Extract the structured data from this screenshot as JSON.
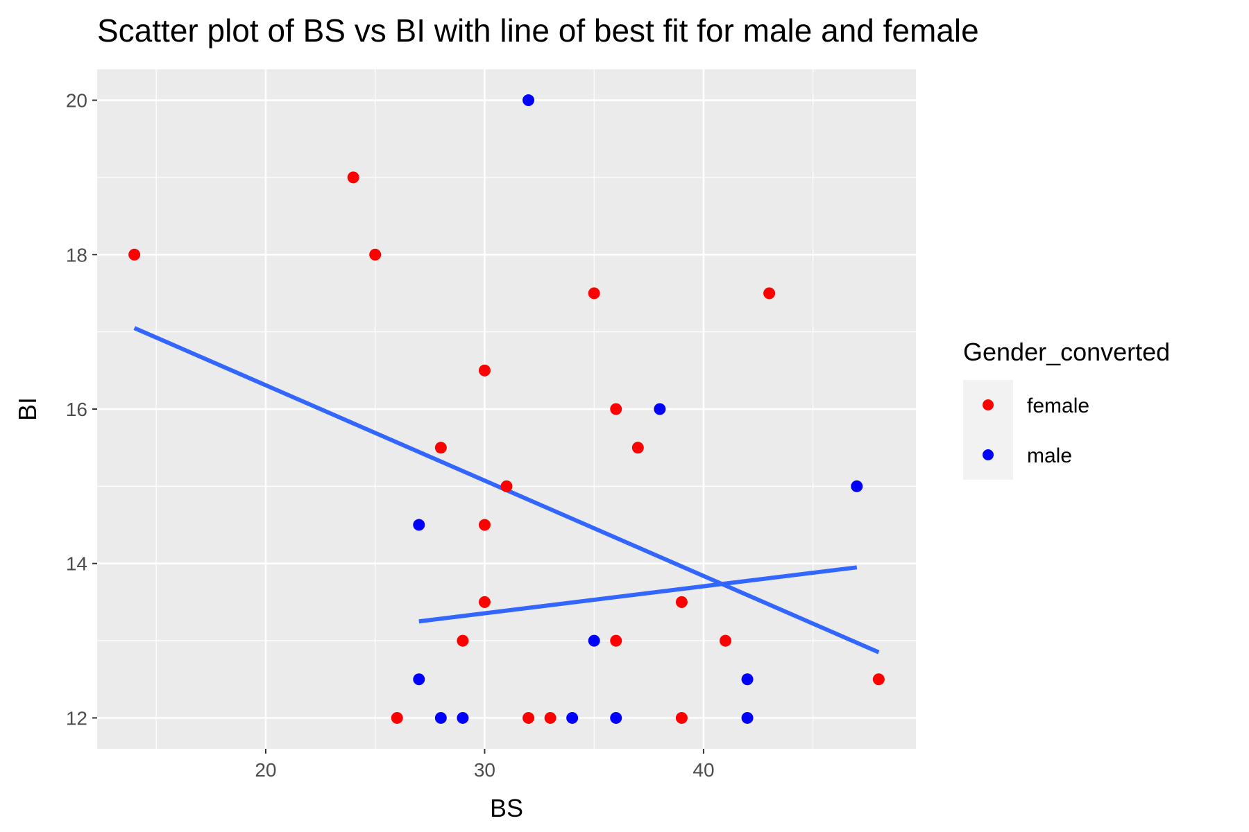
{
  "chart_data": {
    "type": "scatter",
    "title": "Scatter plot of BS vs BI with line of best fit for male and female",
    "xlabel": "BS",
    "ylabel": "BI",
    "xlim": [
      12.3,
      49.7
    ],
    "ylim": [
      11.6,
      20.4
    ],
    "x_ticks": [
      20,
      30,
      40
    ],
    "y_ticks": [
      12,
      14,
      16,
      18,
      20
    ],
    "x_minor": [
      15,
      25,
      35,
      45
    ],
    "y_minor": [
      13,
      15,
      17,
      19
    ],
    "grid": true,
    "legend": {
      "title": "Gender_converted",
      "position": "right",
      "entries": [
        "female",
        "male"
      ]
    },
    "series": [
      {
        "name": "female",
        "color": "#ff0000",
        "points": [
          [
            14,
            18
          ],
          [
            24,
            19
          ],
          [
            25,
            18
          ],
          [
            26,
            12
          ],
          [
            28,
            15.5
          ],
          [
            29,
            13
          ],
          [
            30,
            16.5
          ],
          [
            30,
            14.5
          ],
          [
            30,
            13.5
          ],
          [
            31,
            15
          ],
          [
            32,
            12
          ],
          [
            33,
            12
          ],
          [
            35,
            17.5
          ],
          [
            36,
            16
          ],
          [
            36,
            13
          ],
          [
            37,
            15.5
          ],
          [
            39,
            13.5
          ],
          [
            39,
            12
          ],
          [
            41,
            13
          ],
          [
            43,
            17.5
          ],
          [
            48,
            12.5
          ]
        ],
        "fit": [
          [
            14,
            17.05
          ],
          [
            48,
            12.85
          ]
        ]
      },
      {
        "name": "male",
        "color": "#0000ff",
        "points": [
          [
            27,
            14.5
          ],
          [
            27,
            12.5
          ],
          [
            28,
            12
          ],
          [
            29,
            12
          ],
          [
            32,
            20
          ],
          [
            34,
            12
          ],
          [
            35,
            13
          ],
          [
            36,
            12
          ],
          [
            38,
            16
          ],
          [
            42,
            12.5
          ],
          [
            42,
            12
          ],
          [
            47,
            15
          ]
        ],
        "fit": [
          [
            27,
            13.25
          ],
          [
            47,
            13.95
          ]
        ]
      }
    ],
    "fit_line_color": "#3366ff"
  }
}
